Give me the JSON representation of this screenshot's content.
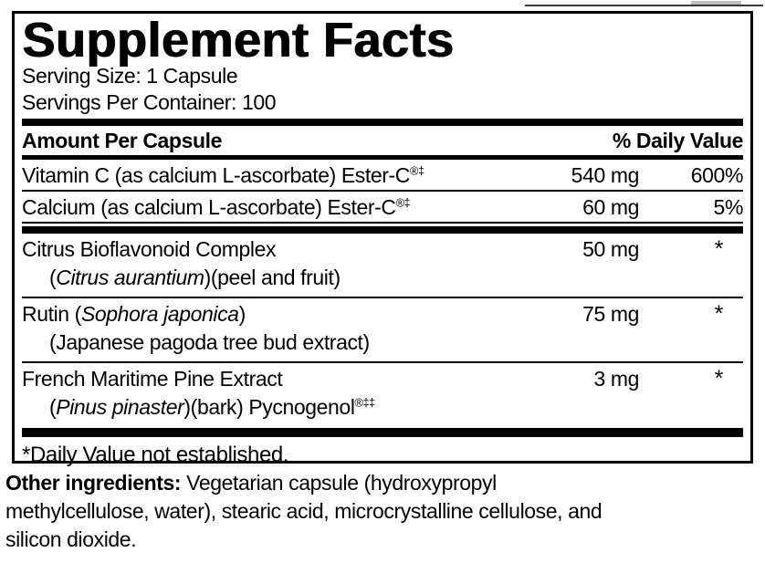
{
  "colors": {
    "ink": "#000000",
    "background": "#ffffff"
  },
  "panel": {
    "title": "Supplement Facts",
    "serving_size": "Serving Size: 1 Capsule",
    "servings_per_container": "Servings Per Container: 100",
    "columns": {
      "amount_header": "Amount Per Capsule",
      "dv_header": "% Daily Value"
    },
    "rows": [
      {
        "name": "Vitamin C (as calcium L-ascorbate) Ester-C",
        "name_sup": "®‡",
        "amount": "540 mg",
        "dv": "600%"
      },
      {
        "name": "Calcium (as calcium L-ascorbate) Ester-C",
        "name_sup": "®‡",
        "amount": "60 mg",
        "dv": "5%"
      },
      {
        "name": "Citrus Bioflavonoid Complex",
        "amount": "50 mg",
        "dv": "*",
        "sub_pre": "(",
        "sub_italic": "Citrus aurantium",
        "sub_post": ")(peel and fruit)"
      },
      {
        "name_pre": "Rutin (",
        "name_italic": "Sophora japonica",
        "name_post": ")",
        "amount": "75 mg",
        "dv": "*",
        "sub": "(Japanese pagoda tree bud extract)"
      },
      {
        "name": "French Maritime Pine Extract",
        "amount": "3 mg",
        "dv": "*",
        "sub_pre": "(",
        "sub_italic": "Pinus pinaster",
        "sub_post": ")(bark) Pycnogenol",
        "sub_sup": "®‡‡"
      }
    ],
    "footnote": "*Daily Value not established."
  },
  "other_ingredients": {
    "lead": "Other ingredients:",
    "line1_rest": " Vegetarian capsule (hydroxypropyl",
    "line2": "methylcellulose, water), stearic acid, microcrystalline cellulose, and",
    "line3": "silicon dioxide."
  }
}
